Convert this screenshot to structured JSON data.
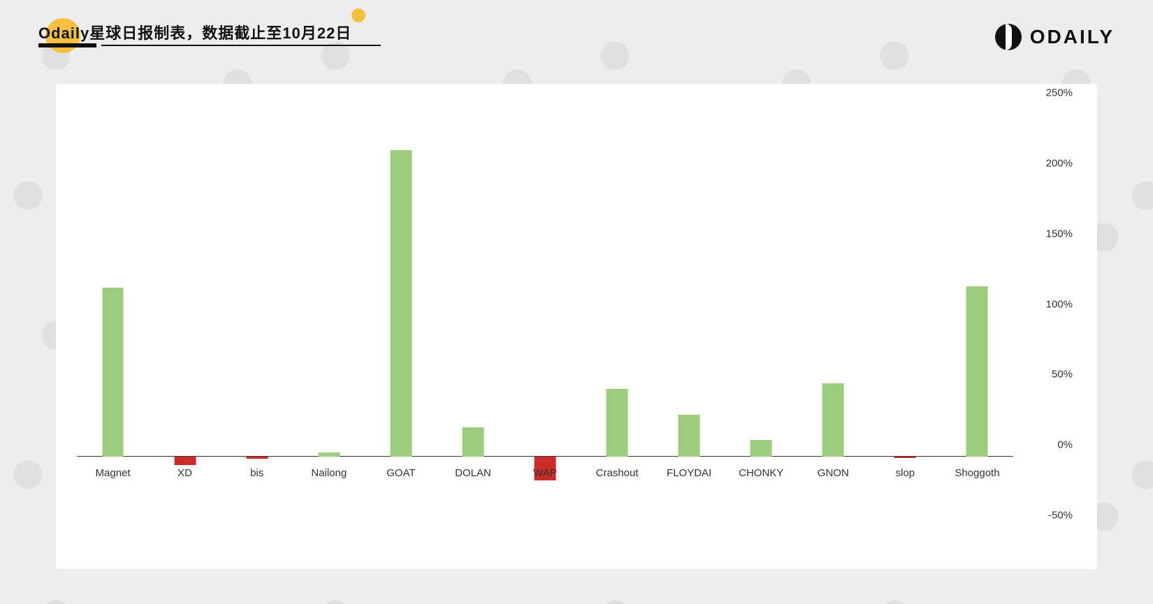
{
  "header": {
    "title": "Odaily星球日报制表，数据截止至10月22日",
    "accent_color": "#f5c03d",
    "brand_text": "ODAILY",
    "brand_icon_name": "odaily-logo-icon"
  },
  "chart": {
    "type": "bar",
    "background_color": "#ffffff",
    "page_background_color": "#ededed",
    "y_axis": {
      "position": "right",
      "min": -50,
      "max": 250,
      "tick_step": 50,
      "tick_labels": [
        "-50%",
        "0%",
        "50%",
        "100%",
        "150%",
        "200%",
        "250%"
      ],
      "label_fontsize": 15,
      "label_color": "#333333"
    },
    "x_axis": {
      "label_fontsize": 15,
      "label_color": "#333333",
      "baseline_color": "#333333"
    },
    "colors": {
      "positive": "#9bcd7c",
      "negative": "#cc2b29"
    },
    "bar_width_ratio": 0.3,
    "categories": [
      "Magnet",
      "XD",
      "bis",
      "Nailong",
      "GOAT",
      "DOLAN",
      "WAP",
      "Crashout",
      "FLOYDAI",
      "CHONKY",
      "GNON",
      "slop",
      "Shoggoth"
    ],
    "values": [
      120,
      -6,
      -1.5,
      3,
      218,
      21,
      -17,
      48,
      30,
      12,
      52,
      -1,
      121
    ]
  }
}
